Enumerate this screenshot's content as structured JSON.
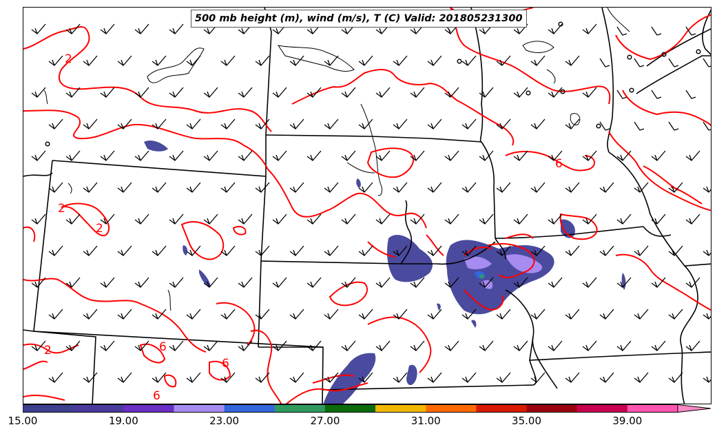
{
  "title": "500 mb height (m), wind (m/s), T (C) Valid: 201805231300",
  "contour_labels": [
    "2",
    "2",
    "2",
    "6",
    "6",
    "6",
    "2",
    "6"
  ],
  "colorbar": {
    "colors": [
      "#3d3f8f",
      "#4a3a9e",
      "#6b2fc4",
      "#a68bf0",
      "#3366dd",
      "#2f9a5e",
      "#0b6b0b",
      "#f0b800",
      "#ff6a00",
      "#d81a00",
      "#9a0010",
      "#c8004f",
      "#ff55b0"
    ],
    "extend_color": "#ff88c8",
    "tick_labels": [
      "15.00",
      "19.00",
      "23.00",
      "27.00",
      "31.00",
      "35.00",
      "39.00"
    ]
  },
  "colors": {
    "temperature_contour": "#ff0000",
    "boundaries": "#000000",
    "precip_base": "#4a4a9e"
  },
  "icons": [
    "wind-barb-icon",
    "calm-wind-circle-icon"
  ]
}
